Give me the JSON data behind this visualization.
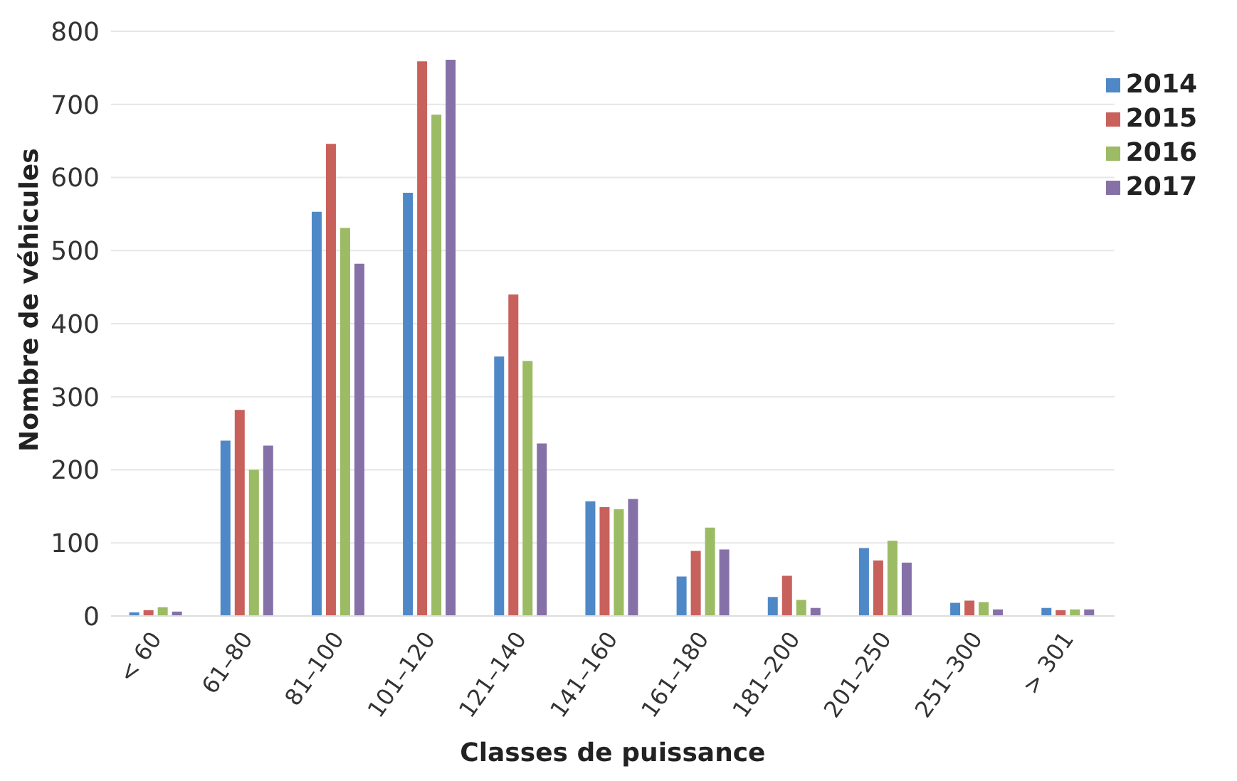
{
  "chart_data": {
    "type": "bar",
    "xlabel": "Classes de puissance",
    "ylabel": "Nombre de véhicules",
    "categories": [
      "< 60",
      "61–80",
      "81–100",
      "101–120",
      "121–140",
      "141–160",
      "161–180",
      "181–200",
      "201–250",
      "251–300",
      "> 301"
    ],
    "series": [
      {
        "name": "2014",
        "color": "#4f88c6",
        "values": [
          5,
          240,
          553,
          579,
          355,
          157,
          54,
          26,
          93,
          18,
          11
        ]
      },
      {
        "name": "2015",
        "color": "#c8605c",
        "values": [
          8,
          282,
          646,
          759,
          440,
          149,
          89,
          55,
          76,
          21,
          8
        ]
      },
      {
        "name": "2016",
        "color": "#9bbb64",
        "values": [
          12,
          200,
          531,
          686,
          349,
          146,
          121,
          22,
          103,
          19,
          9
        ]
      },
      {
        "name": "2017",
        "color": "#8571a8",
        "values": [
          6,
          233,
          482,
          761,
          236,
          160,
          91,
          11,
          73,
          9,
          9
        ]
      }
    ],
    "ylim": [
      0,
      800
    ],
    "yticks": [
      0,
      100,
      200,
      300,
      400,
      500,
      600,
      700,
      800
    ],
    "grid": "y",
    "legend": "top right"
  }
}
